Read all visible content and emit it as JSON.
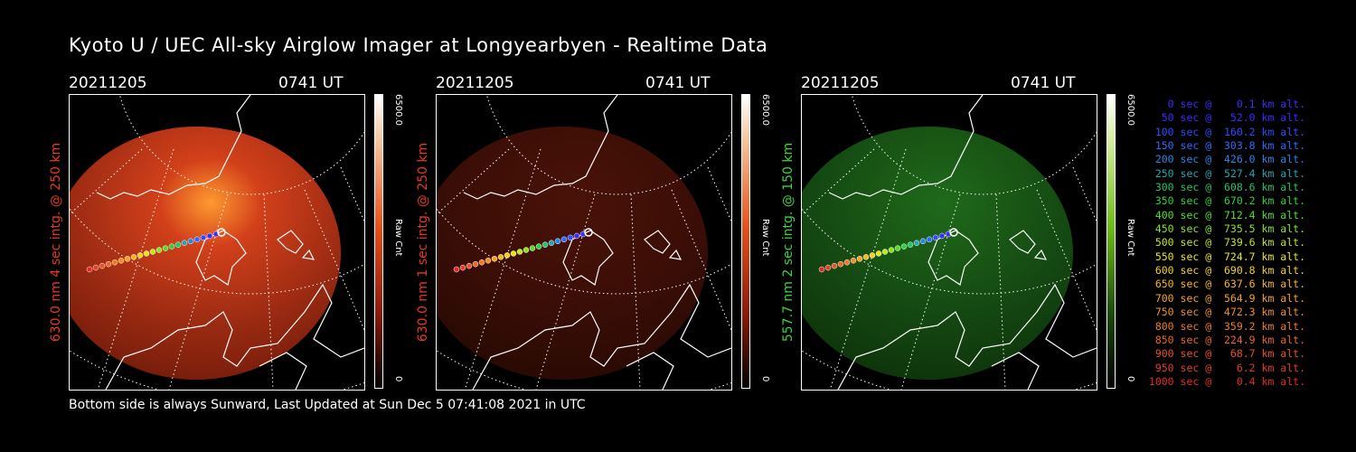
{
  "title": "Kyoto U / UEC All-sky Airglow Imager at Longyearbyen - Realtime Data",
  "footer": "Bottom side is always Sunward, Last Updated at Sun Dec  5 07:41:08 2021 in UTC",
  "panels": [
    {
      "date": "20211205",
      "time": "0741 UT",
      "label": "630.0 nm 4 sec intg. @ 250 km",
      "label_color": "#e83a1a",
      "cmax": "6500.0",
      "cmin": "0",
      "unit": "Raw Cnt",
      "tint": "red-bright"
    },
    {
      "date": "20211205",
      "time": "0741 UT",
      "label": "630.0 nm 1 sec intg. @ 250 km",
      "label_color": "#e83a1a",
      "cmax": "6500.0",
      "cmin": "0",
      "unit": "Raw Cnt",
      "tint": "red-dim"
    },
    {
      "date": "20211205",
      "time": "0741 UT",
      "label": "557.7 nm 2 sec intg. @ 150 km",
      "label_color": "#39d53c",
      "cmax": "6500.0",
      "cmin": "0",
      "unit": "Raw Cnt",
      "tint": "green"
    }
  ],
  "legend": [
    {
      "text": "0 sec @    0.1 km alt.",
      "color": "#3a2cff"
    },
    {
      "text": "50 sec @   52.0 km alt.",
      "color": "#3a2cff"
    },
    {
      "text": "100 sec @  160.2 km alt.",
      "color": "#2f4bff"
    },
    {
      "text": "150 sec @  303.8 km alt.",
      "color": "#2a6bff"
    },
    {
      "text": "200 sec @  426.0 km alt.",
      "color": "#2a86e6"
    },
    {
      "text": "250 sec @  527.4 km alt.",
      "color": "#24a6b2"
    },
    {
      "text": "300 sec @  608.6 km alt.",
      "color": "#21c46a"
    },
    {
      "text": "350 sec @  670.2 km alt.",
      "color": "#2ad33a"
    },
    {
      "text": "400 sec @  712.4 km alt.",
      "color": "#55dd2a"
    },
    {
      "text": "450 sec @  735.5 km alt.",
      "color": "#8be41f"
    },
    {
      "text": "500 sec @  739.6 km alt.",
      "color": "#bfe81a"
    },
    {
      "text": "550 sec @  724.7 km alt.",
      "color": "#e6e617"
    },
    {
      "text": "600 sec @  690.8 km alt.",
      "color": "#f5d21a"
    },
    {
      "text": "650 sec @  637.6 km alt.",
      "color": "#f7b61e"
    },
    {
      "text": "700 sec @  564.9 km alt.",
      "color": "#f7a21e"
    },
    {
      "text": "750 sec @  472.3 km alt.",
      "color": "#f48e22"
    },
    {
      "text": "800 sec @  359.2 km alt.",
      "color": "#f07a24"
    },
    {
      "text": "850 sec @  224.9 km alt.",
      "color": "#ec6626"
    },
    {
      "text": "900 sec @   68.7 km alt.",
      "color": "#e85226"
    },
    {
      "text": "950 sec @    6.2 km alt.",
      "color": "#e43e26"
    },
    {
      "text": "1000 sec @    0.4 km alt.",
      "color": "#e02a26"
    }
  ]
}
